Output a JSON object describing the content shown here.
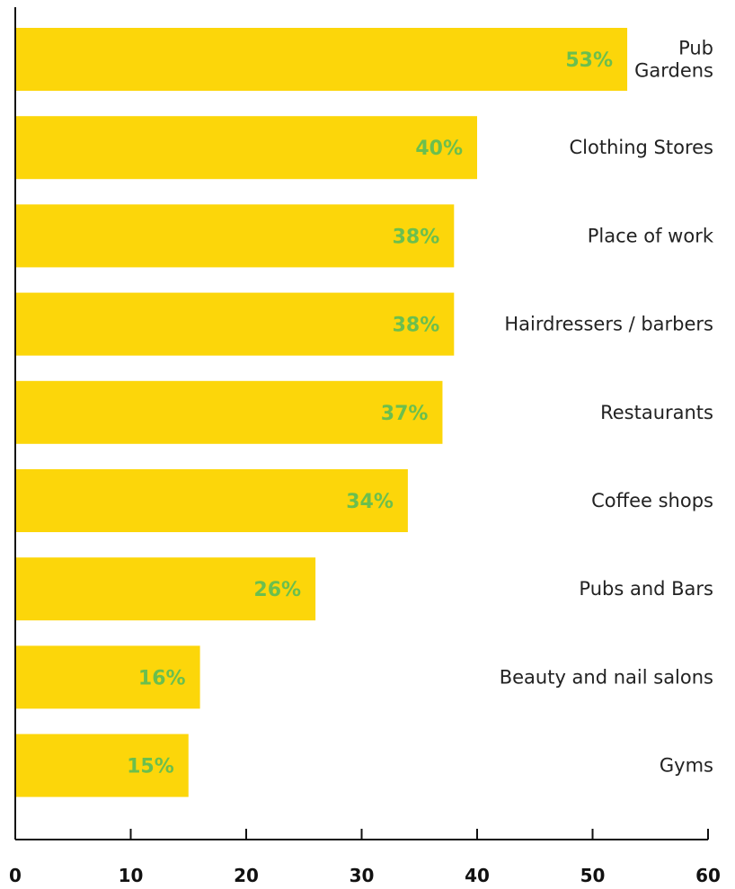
{
  "chart_data": {
    "type": "bar",
    "orientation": "horizontal",
    "categories": [
      [
        "Pub",
        "Gardens"
      ],
      [
        "Clothing Stores"
      ],
      [
        "Place of work"
      ],
      [
        "Hairdressers / barbers"
      ],
      [
        "Restaurants"
      ],
      [
        "Coffee shops"
      ],
      [
        "Pubs and Bars"
      ],
      [
        "Beauty and nail salons"
      ],
      [
        "Gyms"
      ]
    ],
    "values": [
      53,
      40,
      38,
      38,
      37,
      34,
      26,
      16,
      15
    ],
    "value_labels": [
      "53%",
      "40%",
      "38%",
      "38%",
      "37%",
      "34%",
      "26%",
      "16%",
      "15%"
    ],
    "xlim": [
      0,
      60
    ],
    "xticks": [
      0,
      10,
      20,
      30,
      40,
      50,
      60
    ],
    "xtick_labels": [
      "0",
      "10",
      "20",
      "30",
      "40",
      "50",
      "60"
    ],
    "title": "",
    "xlabel": "",
    "ylabel": "",
    "grid": false,
    "colors": {
      "bar": "#fcd60a",
      "value_label": "#6bbf4e",
      "axis": "#111111",
      "category_label": "#222222"
    }
  }
}
